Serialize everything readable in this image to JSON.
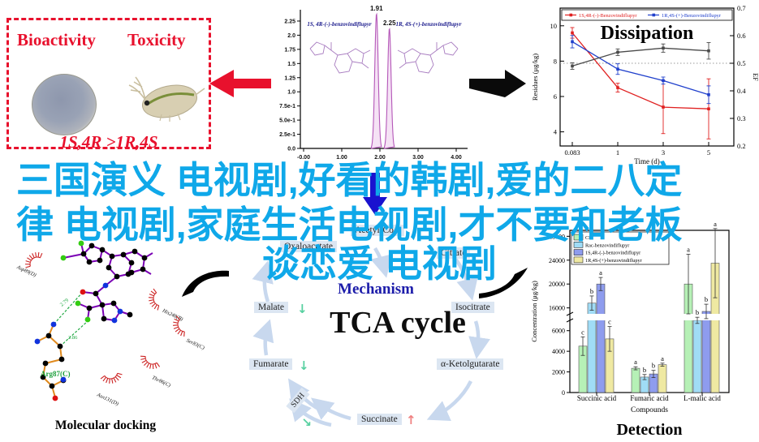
{
  "overlay": {
    "line1": "三国演义 电视剧,好看的韩剧,爱的二八定",
    "line2": "律 电视剧,家庭生活电视剧,才不要和老板",
    "line3": "谈恋爱 电视剧",
    "color": "#0fa8e9"
  },
  "bioactivity_panel": {
    "label_left": "Bioactivity",
    "label_right": "Toxicity",
    "caption": "1S,4R >1R,4S",
    "accent_color": "#e8112d"
  },
  "tca": {
    "mechanism_label": "Mechanism",
    "title": "TCA cycle",
    "nodes": [
      {
        "label": "Acetyl-CoA",
        "trend": ""
      },
      {
        "label": "Oxaloacetate",
        "trend": ""
      },
      {
        "label": "Citrate",
        "trend": ""
      },
      {
        "label": "Isocitrate",
        "trend": ""
      },
      {
        "label": "α-Ketolgutarate",
        "trend": ""
      },
      {
        "label": "Succinate",
        "trend": "up"
      },
      {
        "label": "SDH",
        "trend": "down"
      },
      {
        "label": "Fumarate",
        "trend": "down"
      },
      {
        "label": "Malate",
        "trend": "down"
      }
    ],
    "up_arrow": "↑",
    "down_arrow": "↓",
    "up_color": "#ef8080",
    "down_color": "#57d0a0"
  },
  "docking": {
    "title": "Molecular docking",
    "contacts": [
      "Asp89(D)",
      "His248(B)",
      "Ser83(C)",
      "Thr86(C)",
      "Asn131(D)"
    ],
    "residue_label": "Arg87(C)",
    "hbond_distances": [
      "2.79",
      "2.86"
    ]
  },
  "chart_data": [
    {
      "id": "chromatogram",
      "type": "line",
      "peaks": [
        {
          "rt": 1.91,
          "height": 2.38,
          "label": "1.91"
        },
        {
          "rt": 2.25,
          "height": 2.12,
          "label": "2.25"
        }
      ],
      "compound_left": "1S, 4R-(-)-benzovindiflupyr",
      "compound_right": "1R, 4S-(+)-benzovindiflupyr",
      "ylim": [
        0,
        2.45
      ],
      "ytick_values": [
        2.25,
        2.0,
        1.75,
        1.5,
        1.25,
        1.0,
        0.75,
        0.5,
        0.25,
        0.0
      ],
      "ytick_labels": [
        "2.25",
        "2.0",
        "1.75",
        "1.5",
        "1.25",
        "1.0",
        "7.5e-1",
        "5.0e-1",
        "2.5e-1",
        "0.0"
      ],
      "xtick_values": [
        0,
        1,
        2,
        3,
        4
      ],
      "xtick_labels": [
        "-0.00",
        "1.00",
        "2.00",
        "3.00",
        "4.00"
      ],
      "trace_color": "#b457b8"
    },
    {
      "id": "dissipation",
      "type": "line",
      "title": "Dissipation",
      "x_labels": [
        "0.083",
        "1",
        "3",
        "5"
      ],
      "xlabel": "Time (d)",
      "ylabel_left": "Residues (μg/kg)",
      "ylabel_right": "EF",
      "yticks_left": [
        4,
        6,
        8,
        10
      ],
      "ylim_left": [
        3.2,
        11
      ],
      "yticks_right": [
        0.2,
        0.3,
        0.4,
        0.5,
        0.6,
        0.7
      ],
      "ylim_right": [
        0.2,
        0.7
      ],
      "reference_line_right": 0.5,
      "series": [
        {
          "name": "1S,4R-(-)-Benzovindiflupyr",
          "axis": "left",
          "color": "#e02020",
          "values": [
            9.6,
            6.5,
            5.4,
            5.3
          ],
          "errors": [
            0.3,
            0.25,
            1.5,
            1.7
          ]
        },
        {
          "name": "1R,4S-(+)-Benzovindiflupyr",
          "axis": "left",
          "color": "#2040cc",
          "values": [
            9.1,
            7.55,
            6.9,
            6.1
          ],
          "errors": [
            0.35,
            0.3,
            0.2,
            0.5
          ]
        },
        {
          "name": "EF",
          "axis": "right",
          "color": "#4a4a4a",
          "values": [
            0.49,
            0.54,
            0.555,
            0.545
          ],
          "errors": [
            0.012,
            0.012,
            0.015,
            0.03
          ]
        }
      ]
    },
    {
      "id": "detection",
      "type": "bar",
      "title": "Detection",
      "categories": [
        "Succinic acid",
        "Fumaric acid",
        "L-malic acid"
      ],
      "xlabel": "Compounds",
      "ylabel": "Concentration (μg/kg)",
      "broken_axis": {
        "lower_ticks": [
          0,
          2000,
          4000,
          6000
        ],
        "upper_ticks": [
          16000,
          20000,
          24000,
          28000
        ],
        "lower_max": 7000,
        "upper_min": 15000,
        "upper_max": 29000
      },
      "series": [
        {
          "name": "CK",
          "color": "#b6f0b6",
          "values": [
            4500,
            2350,
            20000
          ],
          "errors": [
            900,
            150,
            5000
          ],
          "letters": [
            "c",
            "a",
            "a"
          ]
        },
        {
          "name": "Rac-benzovindiflupyr",
          "color": "#a0dcf6",
          "values": [
            16800,
            1500,
            7000
          ],
          "errors": [
            1200,
            250,
            300
          ],
          "letters": [
            "b",
            "b",
            "b"
          ]
        },
        {
          "name": "1S,4R-(-)-benzovindiflupyr",
          "color": "#8e9cee",
          "values": [
            20000,
            1800,
            7200
          ],
          "errors": [
            1100,
            350,
            700
          ],
          "letters": [
            "a",
            "b",
            "b"
          ]
        },
        {
          "name": "1R,4S-(+)-benzovindiflupyr",
          "color": "#efe9a2",
          "values": [
            5200,
            2700,
            23500
          ],
          "errors": [
            1200,
            150,
            5800
          ],
          "letters": [
            "c",
            "a",
            "a"
          ]
        }
      ]
    }
  ]
}
